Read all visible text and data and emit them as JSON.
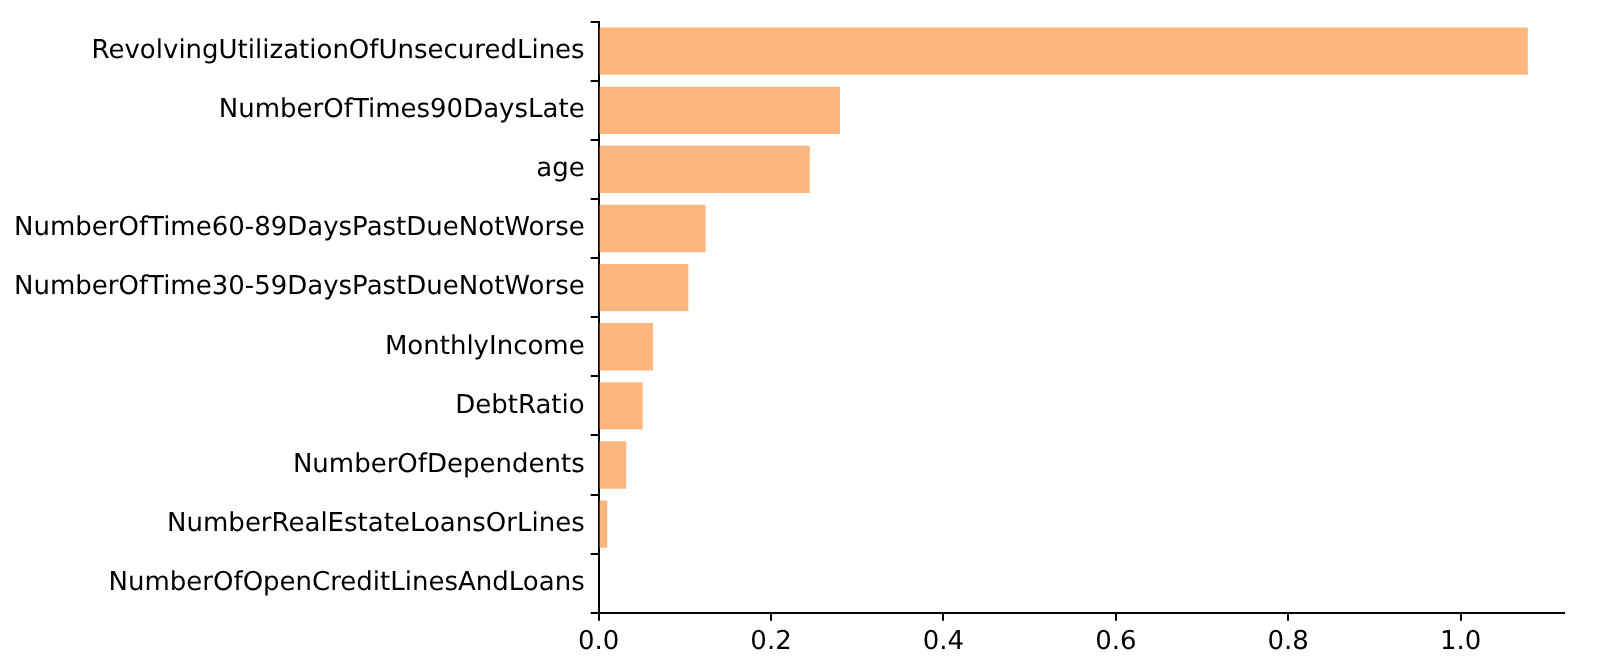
{
  "chart_data": {
    "type": "bar",
    "orientation": "horizontal",
    "categories": [
      "RevolvingUtilizationOfUnsecuredLines",
      "NumberOfTimes90DaysLate",
      "age",
      "NumberOfTime60-89DaysPastDueNotWorse",
      "NumberOfTime30-59DaysPastDueNotWorse",
      "MonthlyIncome",
      "DebtRatio",
      "NumberOfDependents",
      "NumberRealEstateLoansOrLines",
      "NumberOfOpenCreditLinesAndLoans"
    ],
    "values": [
      1.078,
      0.28,
      0.245,
      0.124,
      0.104,
      0.063,
      0.051,
      0.032,
      0.01,
      null
    ],
    "color": "#fdb77e",
    "xlim": [
      0,
      1.12
    ],
    "xticks": [
      {
        "value": 0,
        "label": "0.0"
      },
      {
        "value": 0.2,
        "label": "0.2"
      },
      {
        "value": 0.4,
        "label": "0.4"
      },
      {
        "value": 0.6,
        "label": "0.6"
      },
      {
        "value": 0.8,
        "label": "0.8"
      },
      {
        "value": 1,
        "label": "1.0"
      }
    ],
    "grid": false,
    "legend": false
  }
}
